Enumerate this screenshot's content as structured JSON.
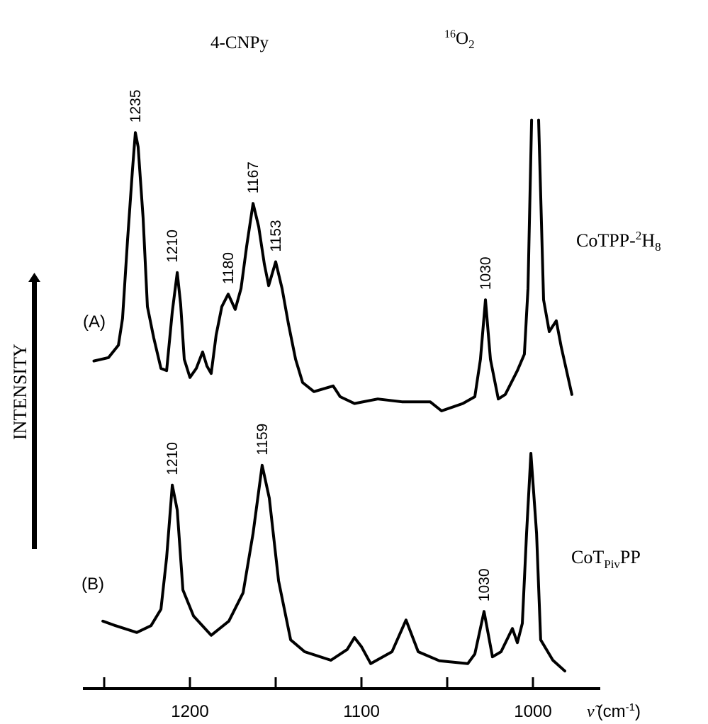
{
  "chart_data": {
    "type": "line",
    "title": "",
    "xlabel": {
      "symbol": "ν̃",
      "unit_open": "(cm",
      "unit_sup": "-1",
      "unit_close": ")"
    },
    "ylabel": "INTENSITY",
    "xlim": [
      1262,
      961
    ],
    "x_reversed": true,
    "x_ticks": [
      1250,
      1200,
      1150,
      1100,
      1050,
      1000
    ],
    "x_tick_labels": [
      "",
      "1200",
      "",
      "1100",
      "",
      "1000"
    ],
    "y_scale": "arbitrary units, no ticks",
    "grid": false,
    "line_color": "#000000",
    "region_labels": {
      "cnpy": "4-CNPy",
      "o2": {
        "sup": "16",
        "base": "O",
        "sub": "2"
      }
    },
    "series": [
      {
        "name": "CoTPP-2H8",
        "panel_label": "(A)",
        "label_parts": {
          "a": "CoTPP-",
          "sup": "2",
          "b": "H",
          "sub": "8"
        },
        "segments": [
          [
            [
              1256,
              58.8
            ],
            [
              1247.5,
              59.4
            ],
            [
              1241.7,
              61.6
            ],
            [
              1239.3,
              66.3
            ],
            [
              1236.4,
              80
            ],
            [
              1233.5,
              92.5
            ],
            [
              1231.8,
              99.1
            ],
            [
              1230.2,
              96.6
            ],
            [
              1227.3,
              84.1
            ],
            [
              1224.8,
              68.4
            ],
            [
              1221.1,
              62.9
            ],
            [
              1216.9,
              57.5
            ],
            [
              1213.6,
              57.1
            ],
            [
              1210.3,
              67.5
            ],
            [
              1207.4,
              74.4
            ],
            [
              1205.4,
              68.8
            ],
            [
              1203.3,
              59.1
            ],
            [
              1200,
              55.9
            ],
            [
              1196.3,
              57.5
            ],
            [
              1192.6,
              60.4
            ],
            [
              1190.1,
              57.9
            ],
            [
              1187.6,
              56.6
            ],
            [
              1184.7,
              63.4
            ],
            [
              1181.4,
              68.4
            ],
            [
              1177.7,
              70.6
            ],
            [
              1173.6,
              67.9
            ],
            [
              1170.2,
              71.6
            ],
            [
              1166.9,
              79.1
            ],
            [
              1163.2,
              86.6
            ],
            [
              1159.9,
              82.5
            ],
            [
              1156.6,
              75.9
            ],
            [
              1154.1,
              72.1
            ],
            [
              1150,
              76.3
            ],
            [
              1146.3,
              71.6
            ],
            [
              1142.6,
              65.4
            ],
            [
              1138.4,
              59.1
            ],
            [
              1134.3,
              55
            ],
            [
              1127.7,
              53.4
            ],
            [
              1116.5,
              54.4
            ],
            [
              1112.4,
              52.5
            ],
            [
              1104.1,
              51.3
            ],
            [
              1090.5,
              52.1
            ],
            [
              1076.4,
              51.6
            ],
            [
              1059.9,
              51.6
            ],
            [
              1053.3,
              50
            ],
            [
              1040.9,
              51.3
            ],
            [
              1033.9,
              52.5
            ],
            [
              1030.6,
              59.1
            ],
            [
              1027.7,
              69.6
            ],
            [
              1024.8,
              59.1
            ],
            [
              1020.2,
              52.1
            ],
            [
              1016.1,
              52.9
            ],
            [
              1009.1,
              57.1
            ],
            [
              1005,
              60
            ],
            [
              1002.9,
              71.6
            ],
            [
              1000.8,
              101.3
            ]
          ],
          [
            [
              996.7,
              101.3
            ],
            [
              993.8,
              69.6
            ],
            [
              990.5,
              64
            ],
            [
              986.4,
              65.9
            ],
            [
              983.5,
              61.3
            ],
            [
              977.3,
              52.9
            ]
          ]
        ],
        "peak_labels": [
          {
            "text": "1235",
            "x": 1231.8,
            "y": 99.1
          },
          {
            "text": "1210",
            "x": 1210.3,
            "y": 74.4
          },
          {
            "text": "1180",
            "x": 1177.7,
            "y": 70.6
          },
          {
            "text": "1167",
            "x": 1163.2,
            "y": 86.6
          },
          {
            "text": "1153",
            "x": 1150,
            "y": 76.3
          },
          {
            "text": "1030",
            "x": 1027.7,
            "y": 69.6
          }
        ]
      },
      {
        "name": "CoTPivPP",
        "panel_label": "(B)",
        "label_parts": {
          "a": "CoT",
          "sub": "Piv",
          "b": "PP"
        },
        "segments": [
          [
            [
              1250.8,
              12.9
            ],
            [
              1243.4,
              12.1
            ],
            [
              1231,
              10.9
            ],
            [
              1222.7,
              12.1
            ],
            [
              1216.9,
              15
            ],
            [
              1213.6,
              24.1
            ],
            [
              1210.3,
              36.9
            ],
            [
              1207.4,
              32.5
            ],
            [
              1204.1,
              18.4
            ],
            [
              1197.9,
              13.8
            ],
            [
              1187.6,
              10.4
            ],
            [
              1177.3,
              12.9
            ],
            [
              1169,
              17.9
            ],
            [
              1163.2,
              28.4
            ],
            [
              1157.9,
              40.4
            ],
            [
              1153.7,
              34.6
            ],
            [
              1148.3,
              20
            ],
            [
              1141.3,
              9.6
            ],
            [
              1133.1,
              7.5
            ],
            [
              1117.8,
              6
            ],
            [
              1108.3,
              7.9
            ],
            [
              1104.1,
              10
            ],
            [
              1100,
              8.4
            ],
            [
              1094.6,
              5.4
            ],
            [
              1082.2,
              7.5
            ],
            [
              1074,
              13.1
            ],
            [
              1066.9,
              7.5
            ],
            [
              1054.5,
              5.9
            ],
            [
              1038,
              5.4
            ],
            [
              1033.9,
              7.1
            ],
            [
              1028.5,
              14.6
            ],
            [
              1023.6,
              6.6
            ],
            [
              1018.6,
              7.5
            ],
            [
              1012,
              11.6
            ],
            [
              1009.1,
              9.1
            ],
            [
              1006.2,
              12.5
            ],
            [
              1003.7,
              28.4
            ],
            [
              1001.2,
              42.5
            ],
            [
              997.9,
              28.4
            ],
            [
              995.5,
              9.6
            ],
            [
              988.4,
              6
            ],
            [
              981.4,
              4.1
            ]
          ]
        ],
        "peak_labels": [
          {
            "text": "1210",
            "x": 1210.3,
            "y": 36.9
          },
          {
            "text": "1159",
            "x": 1157.9,
            "y": 40.4
          },
          {
            "text": "1030",
            "x": 1028.5,
            "y": 14.6
          }
        ]
      }
    ]
  }
}
